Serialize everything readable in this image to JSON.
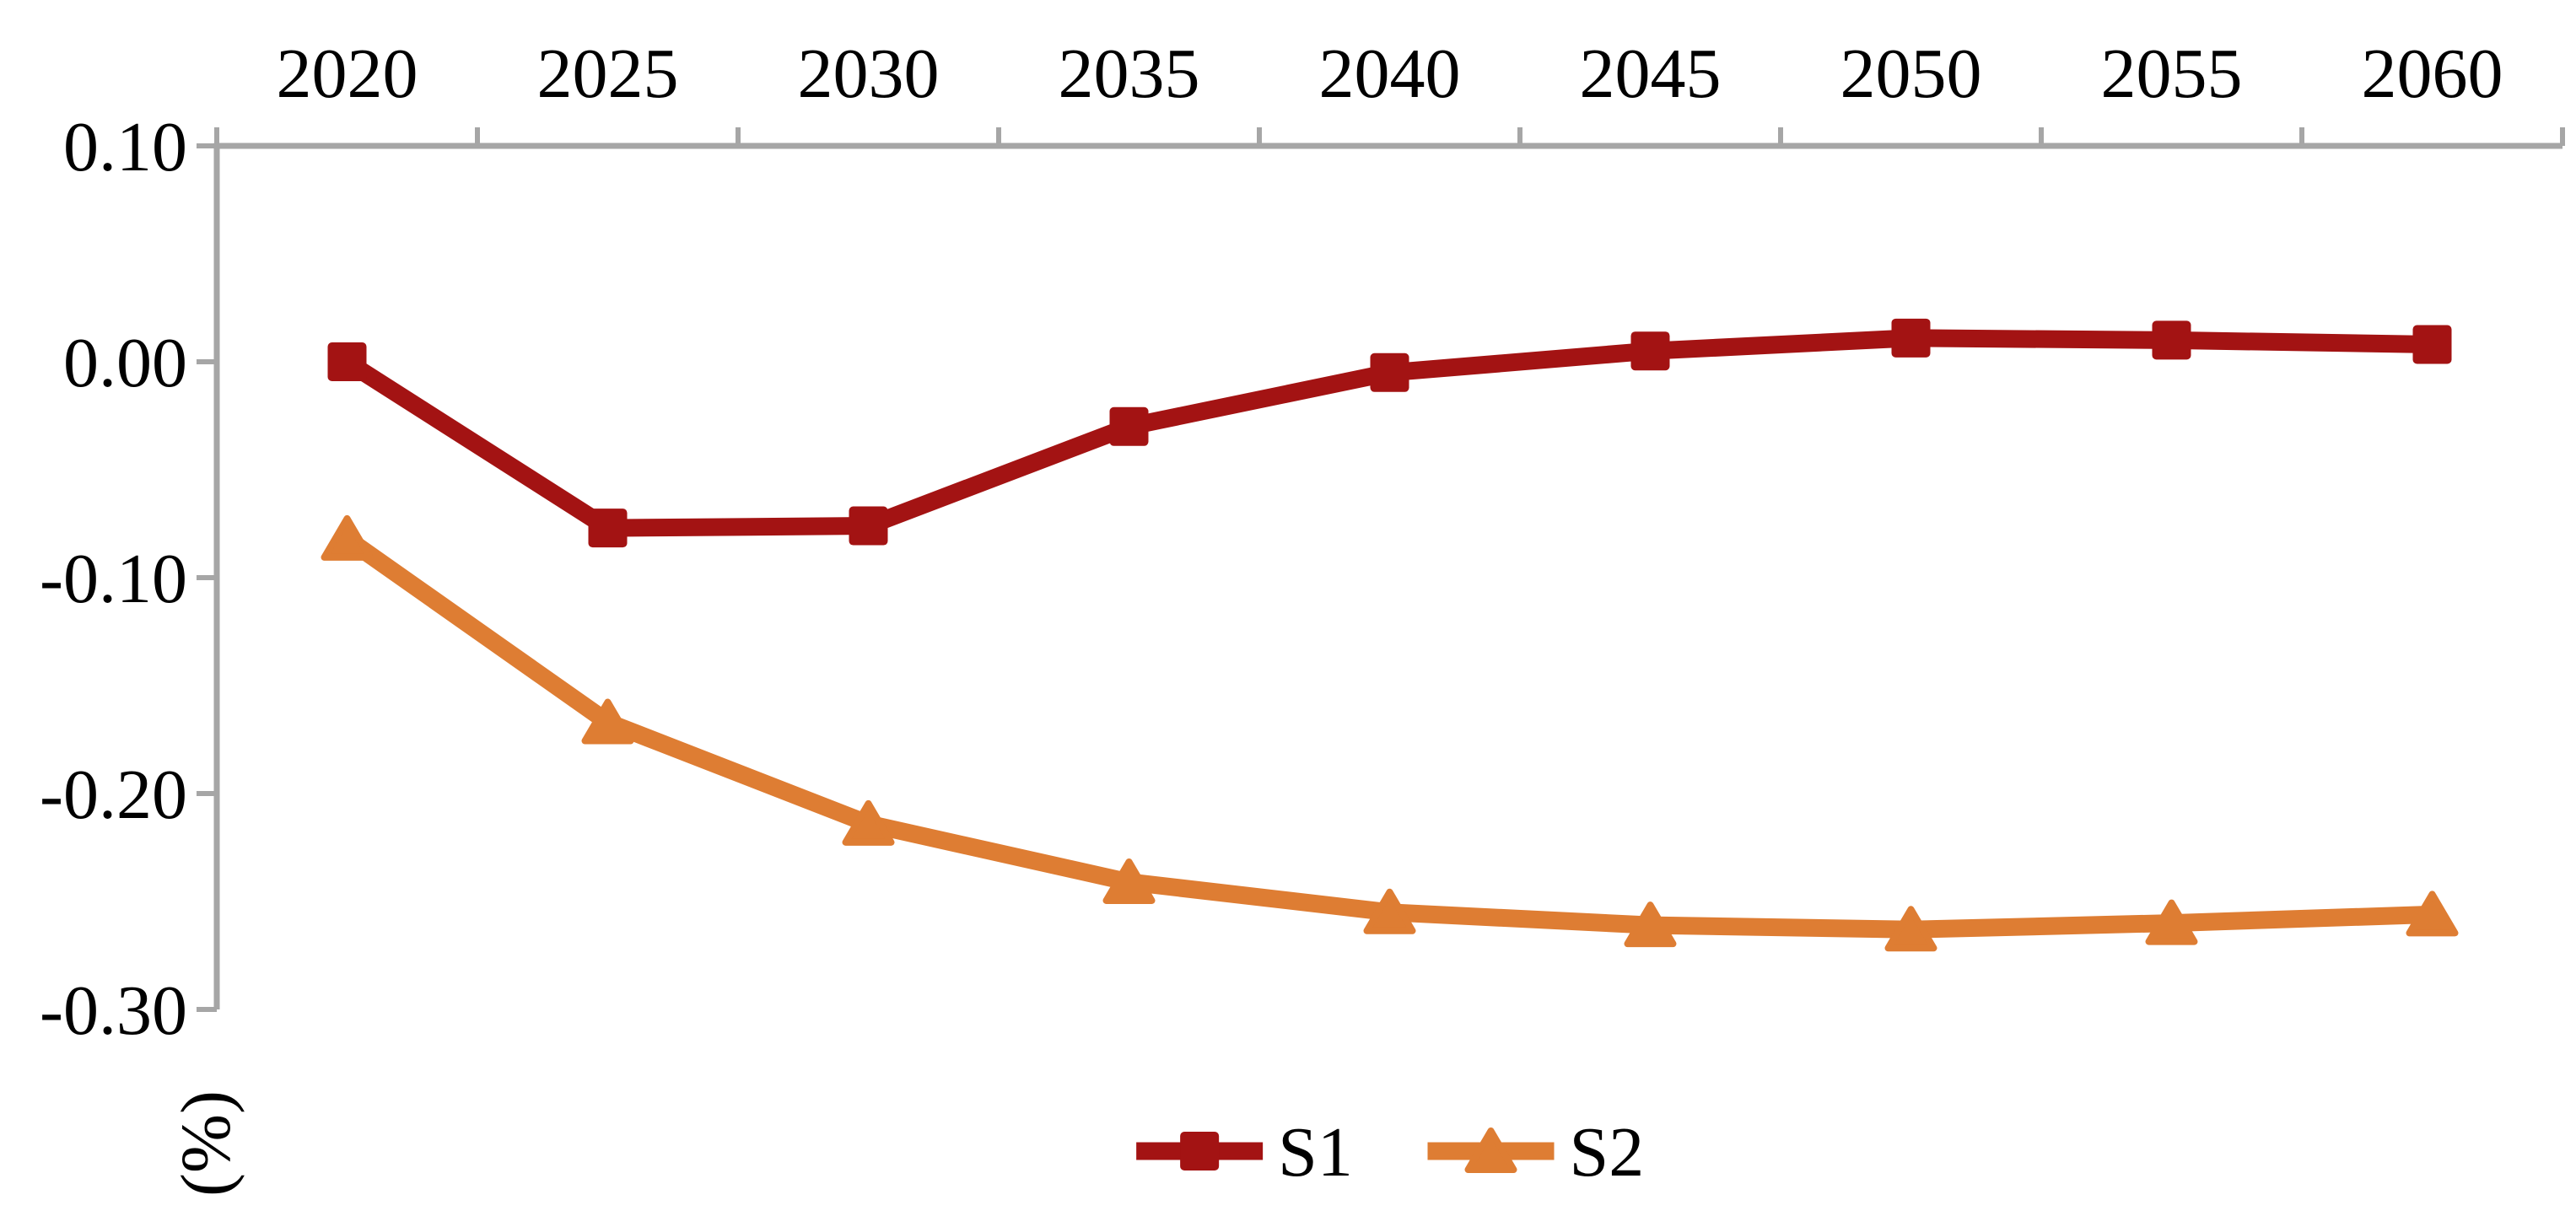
{
  "chart_data": {
    "type": "line",
    "title": "",
    "xlabel": "",
    "ylabel": "(%)",
    "categories": [
      "2020",
      "2025",
      "2030",
      "2035",
      "2040",
      "2045",
      "2050",
      "2055",
      "2060"
    ],
    "series": [
      {
        "name": "S1",
        "marker": "square",
        "color": "#a31313",
        "values": [
          0.0,
          -0.077,
          -0.076,
          -0.03,
          -0.005,
          0.005,
          0.011,
          0.01,
          0.008
        ]
      },
      {
        "name": "S2",
        "marker": "triangle",
        "color": "#de7d33",
        "values": [
          -0.082,
          -0.167,
          -0.214,
          -0.241,
          -0.255,
          -0.261,
          -0.263,
          -0.26,
          -0.256
        ]
      }
    ],
    "ylim": [
      -0.3,
      0.1
    ],
    "y_ticks": [
      0.1,
      0.0,
      -0.1,
      -0.2,
      -0.3
    ],
    "y_tick_labels": [
      "0.10",
      "0.00",
      "-0.10",
      "-0.20",
      "-0.30"
    ],
    "x_axis_position": "top",
    "x_labels_between_ticks": true,
    "legend_position": "bottom-center",
    "grid": false,
    "axis_color": "#a6a6a6",
    "text_color": "#000000"
  }
}
